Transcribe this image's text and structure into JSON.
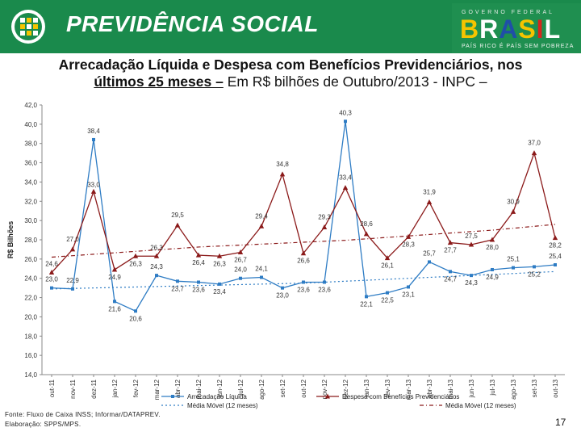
{
  "header": {
    "brand_text": "PREVIDÊNCIA SOCIAL",
    "gov_top": "GOVERNO FEDERAL",
    "gov_brand": "BRASIL",
    "gov_slogan": "PAÍS RICO É PAÍS SEM POBREZA",
    "colors": {
      "bg": "#1a8a4c",
      "yellow": "#f5c400",
      "blue": "#1f4fa8",
      "red": "#d6261e"
    }
  },
  "title": {
    "part1": "Arrecadação Líquida e Despesa com Benefícios Previdenciários, nos",
    "part2": "últimos 25 meses –",
    "part3": " Em R$ bilhões de Outubro/2013 - INPC –"
  },
  "chart_data": {
    "type": "line",
    "ylabel": "R$ Bilhões",
    "ylim": [
      14,
      42
    ],
    "yticks": [
      "14,0",
      "16,0",
      "18,0",
      "20,0",
      "22,0",
      "24,0",
      "26,0",
      "28,0",
      "30,0",
      "32,0",
      "34,0",
      "36,0",
      "38,0",
      "40,0",
      "42,0"
    ],
    "grid": false,
    "legend_position": "bottom",
    "categories": [
      "out-11",
      "nov-11",
      "dez-11",
      "jan-12",
      "fev-12",
      "mar-12",
      "abr-12",
      "mai-12",
      "jun-12",
      "jul-12",
      "ago-12",
      "set-12",
      "out-12",
      "nov-12",
      "dez-12",
      "jan-13",
      "fev-13",
      "mar-13",
      "abr-13",
      "mai-13",
      "jun-13",
      "jul-13",
      "ago-13",
      "set-13",
      "out-13"
    ],
    "series": [
      {
        "name": "Arrecadação Líquida",
        "color": "#2e7cc4",
        "marker": "square",
        "values": [
          23.0,
          22.9,
          38.4,
          21.6,
          20.6,
          24.3,
          23.7,
          23.6,
          23.4,
          24.0,
          24.1,
          23.0,
          23.6,
          23.6,
          40.3,
          22.1,
          22.5,
          23.1,
          25.7,
          24.7,
          24.3,
          24.9,
          25.1,
          25.2,
          25.4
        ],
        "labels": [
          "23,0",
          "22,9",
          "38,4",
          "21,6",
          "20,6",
          "24,3",
          "23,7",
          "23,6",
          "23,4",
          "24,0",
          "24,1",
          "23,0",
          "23,6",
          "23,6",
          "40,3",
          "22,1",
          "22,5",
          "23,1",
          "25,7",
          "24,7",
          "24,3",
          "24,9",
          "25,1",
          "25,2",
          "25,4"
        ],
        "label_shown": [
          true,
          true,
          true,
          true,
          true,
          true,
          true,
          true,
          true,
          true,
          true,
          true,
          true,
          true,
          true,
          true,
          true,
          true,
          true,
          true,
          true,
          true,
          true,
          true,
          true
        ]
      },
      {
        "name": "Despesa com Benefícios Previdenciários",
        "color": "#8b1a1a",
        "marker": "triangle",
        "values": [
          24.6,
          27.0,
          33.0,
          24.9,
          26.3,
          26.3,
          29.5,
          26.4,
          26.3,
          26.7,
          29.4,
          34.8,
          26.6,
          29.3,
          33.4,
          28.6,
          26.1,
          28.3,
          31.9,
          27.7,
          27.5,
          28.0,
          30.9,
          37.0,
          28.2
        ],
        "labels": [
          "24,6",
          "27,0",
          "33,0",
          "24,9",
          "26,3",
          "26,3",
          "29,5",
          "26,4",
          "26,3",
          "26,7",
          "29,4",
          "34,8",
          "26,6",
          "29,3",
          "33,4",
          "28,6",
          "26,1",
          "28,3",
          "31,9",
          "27,7",
          "27,5",
          "28,0",
          "30,9",
          "37,0",
          "28,2"
        ],
        "label_shown": [
          true,
          true,
          true,
          true,
          true,
          true,
          true,
          true,
          true,
          true,
          true,
          true,
          true,
          true,
          true,
          true,
          true,
          true,
          true,
          true,
          true,
          true,
          true,
          true,
          true
        ]
      },
      {
        "name": "Média Móvel (12 meses)",
        "color": "#2e7cc4",
        "style": "dotted",
        "values": [
          22.9,
          22.95,
          23.0,
          23.05,
          23.1,
          23.15,
          23.2,
          23.25,
          23.3,
          23.35,
          23.4,
          23.45,
          23.5,
          23.6,
          23.7,
          23.8,
          23.9,
          24.0,
          24.1,
          24.2,
          24.3,
          24.4,
          24.5,
          24.6,
          24.7
        ]
      },
      {
        "name": "Média Móvel (12 meses)",
        "color": "#8b1a1a",
        "style": "dash-dot",
        "values": [
          26.2,
          26.35,
          26.5,
          26.65,
          26.8,
          26.95,
          27.1,
          27.25,
          27.35,
          27.45,
          27.55,
          27.65,
          27.75,
          27.85,
          27.95,
          28.1,
          28.25,
          28.4,
          28.55,
          28.7,
          28.85,
          29.0,
          29.2,
          29.4,
          29.6
        ]
      }
    ]
  },
  "footer": {
    "source_line1": "Fonte: Fluxo de Caixa INSS; Informar/DATAPREV.",
    "source_line2": "Elaboração: SPPS/MPS.",
    "page_number": "17"
  }
}
